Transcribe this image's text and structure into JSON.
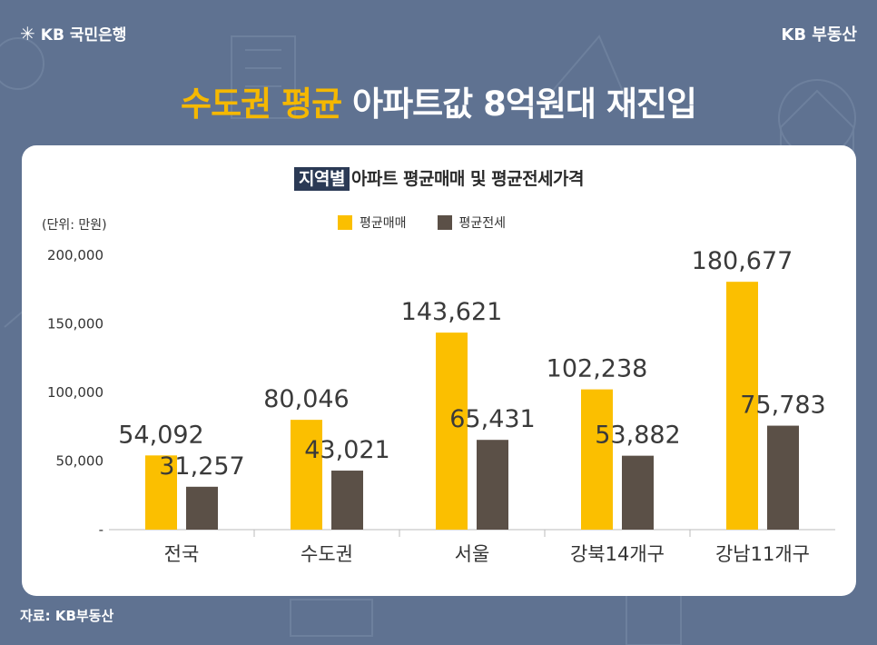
{
  "brand": {
    "bank_name": "KB 국민은행",
    "bank_icon": "kb-star-icon",
    "realty_name": "KB 부동산"
  },
  "headline": {
    "highlight": "수도권 평균",
    "rest": "아파트값 8억원대 재진입"
  },
  "chart_data": {
    "type": "bar",
    "title_highlight": "지역별",
    "title": "아파트 평균매매 및 평균전세가격",
    "unit_label": "(단위: 만원)",
    "categories": [
      "전국",
      "수도권",
      "서울",
      "강북14개구",
      "강남11개구"
    ],
    "series": [
      {
        "name": "평균매매",
        "color": "#fbbf00",
        "values": [
          54092,
          80046,
          143621,
          102238,
          180677
        ]
      },
      {
        "name": "평균전세",
        "color": "#5b5047",
        "values": [
          31257,
          43021,
          65431,
          53882,
          75783
        ]
      }
    ],
    "value_labels": {
      "평균매매": [
        "54,092",
        "80,046",
        "143,621",
        "102,238",
        "180,677"
      ],
      "평균전세": [
        "31,257",
        "43,021",
        "65,431",
        "53,882",
        "75,783"
      ]
    },
    "ylim": [
      0,
      200000
    ],
    "yticks": [
      0,
      50000,
      100000,
      150000,
      200000
    ],
    "ytick_labels": [
      "-",
      "50,000",
      "100,000",
      "150,000",
      "200,000"
    ],
    "grid": false,
    "legend_position": "top-center"
  },
  "source": "자료: KB부동산"
}
